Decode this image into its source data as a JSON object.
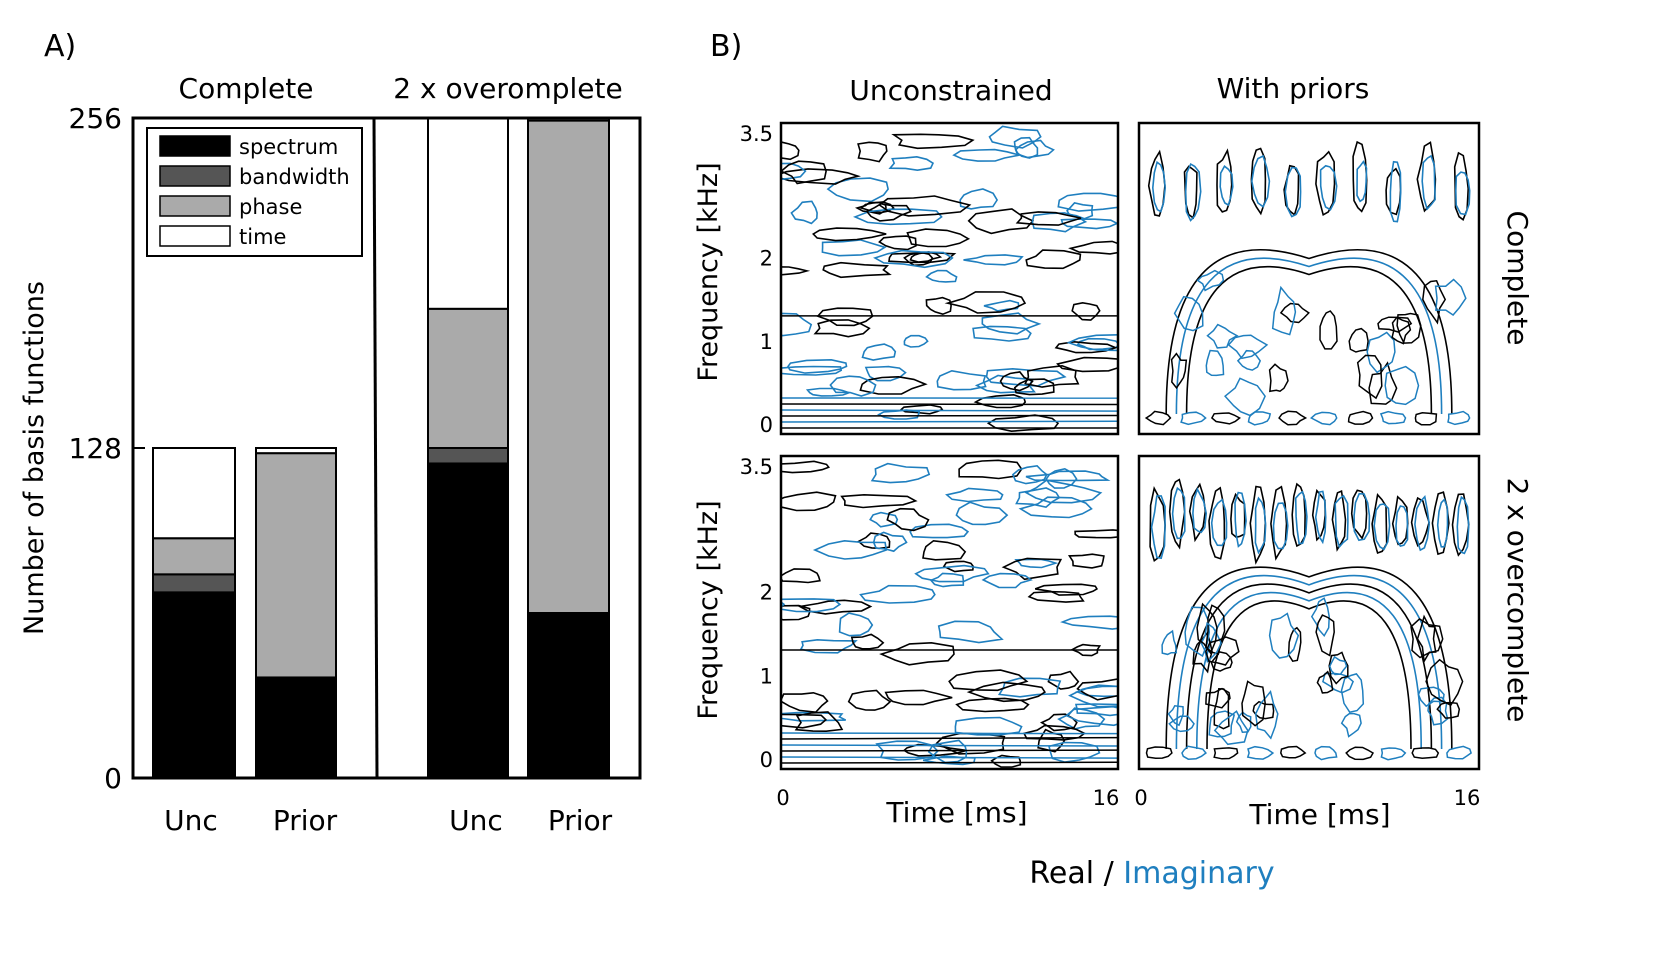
{
  "panel_a": {
    "label": "A)",
    "group_titles": [
      "Complete",
      "2 x overomplete"
    ],
    "ylabel": "Number of basis functions",
    "colors": {
      "spectrum": "#000000",
      "bandwidth": "#555555",
      "phase": "#aaaaaa",
      "time": "#ffffff"
    }
  },
  "panel_b": {
    "label": "B)",
    "col_titles": [
      "Unconstrained",
      "With priors"
    ],
    "row_titles": [
      "Complete",
      "2 x overcomplete"
    ],
    "ylabel": "Frequency [kHz]",
    "xlabel": "Time [ms]",
    "xticks": [
      "0",
      "16"
    ],
    "yticks": [
      "0",
      "1",
      "2",
      "3.5"
    ],
    "footer_real": "Real / ",
    "footer_imag": "Imaginary",
    "real_color": "#000000",
    "imag_color": "#1f7fbf"
  },
  "chart_data": [
    {
      "type": "bar",
      "stacked": true,
      "title": "",
      "ylabel": "Number of basis functions",
      "ylim": [
        0,
        256
      ],
      "yticks": [
        0,
        128,
        256
      ],
      "groups": [
        "Complete",
        "2 x overomplete"
      ],
      "categories": [
        "Unc",
        "Prior",
        "Unc",
        "Prior"
      ],
      "category_group": [
        0,
        0,
        1,
        1
      ],
      "legend": [
        "spectrum",
        "bandwidth",
        "phase",
        "time"
      ],
      "series": [
        {
          "name": "spectrum",
          "values": [
            72,
            39,
            122,
            64
          ]
        },
        {
          "name": "bandwidth",
          "values": [
            7,
            0,
            6,
            0
          ]
        },
        {
          "name": "phase",
          "values": [
            14,
            87,
            54,
            191
          ]
        },
        {
          "name": "time",
          "values": [
            35,
            2,
            74,
            1
          ]
        }
      ]
    },
    {
      "type": "contour",
      "title": "",
      "xlabel": "Time [ms]",
      "ylabel": "Frequency [kHz]",
      "xlim": [
        0,
        16
      ],
      "ylim": [
        0,
        3.5
      ],
      "rows": [
        "Complete",
        "2 x overcomplete"
      ],
      "columns": [
        "Unconstrained",
        "With priors"
      ],
      "series": [
        {
          "name": "Real",
          "color": "#000000"
        },
        {
          "name": "Imaginary",
          "color": "#1f7fbf"
        }
      ]
    }
  ]
}
